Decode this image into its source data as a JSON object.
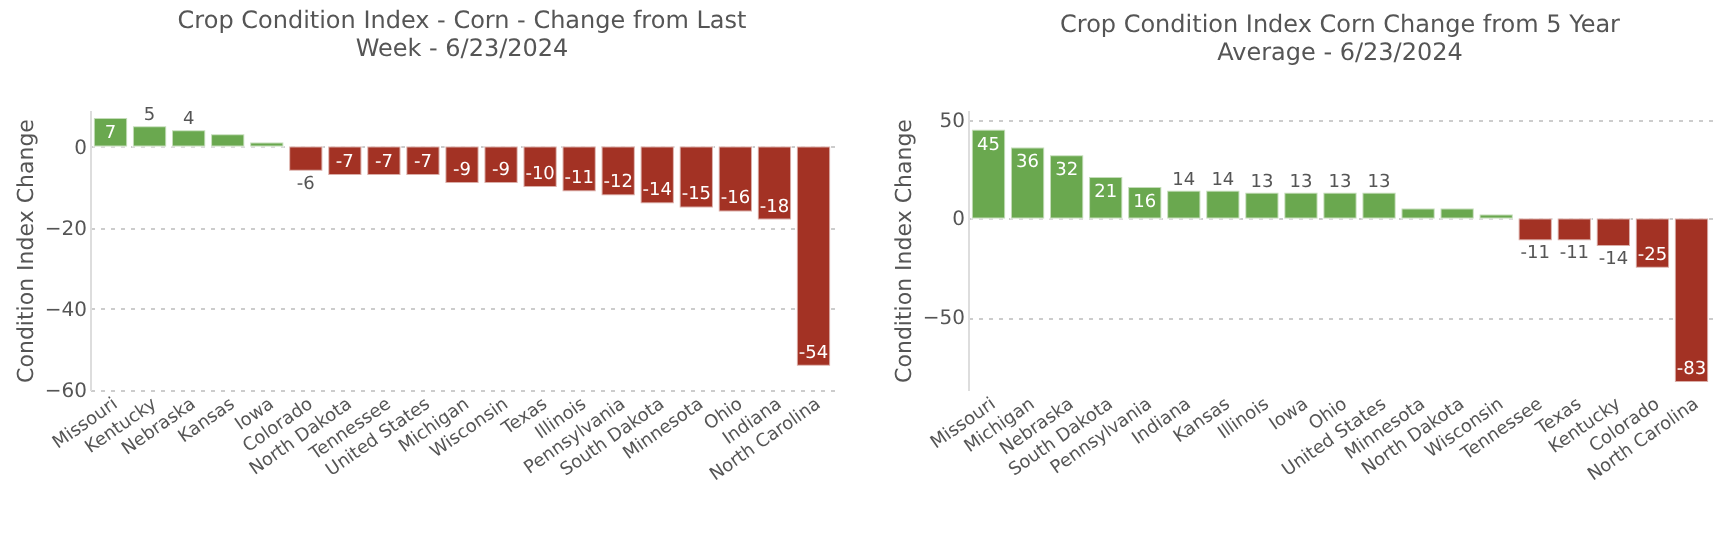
{
  "chart_data": [
    {
      "type": "bar",
      "title": "Crop Condition Index - Corn - Change from Last Week - 6/23/2024",
      "ylabel": "Condition Index Change",
      "categories": [
        "Missouri",
        "Kentucky",
        "Nebraska",
        "Kansas",
        "Iowa",
        "Colorado",
        "North Dakota",
        "Tennessee",
        "United States",
        "Michigan",
        "Wisconsin",
        "Texas",
        "Illinois",
        "Pennsylvania",
        "South Dakota",
        "Minnesota",
        "Ohio",
        "Indiana",
        "North Carolina"
      ],
      "values": [
        7,
        5,
        4,
        3,
        1,
        -6,
        -7,
        -7,
        -7,
        -9,
        -9,
        -10,
        -11,
        -12,
        -14,
        -15,
        -16,
        -18,
        -54
      ],
      "value_labels": [
        "7",
        "5",
        "4",
        null,
        null,
        "-6",
        "-7",
        "-7",
        "-7",
        "-9",
        "-9",
        "-10",
        "-11",
        "-12",
        "-14",
        "-15",
        "-16",
        "-18",
        "-54"
      ],
      "colors": [
        "#6aa84f",
        "#6aa84f",
        "#6aa84f",
        "#6aa84f",
        "#6aa84f",
        "#a33224",
        "#a33224",
        "#a33224",
        "#a33224",
        "#a33224",
        "#a33224",
        "#a33224",
        "#a33224",
        "#a33224",
        "#a33224",
        "#a33224",
        "#a33224",
        "#a33224",
        "#a33224"
      ],
      "ylim": [
        -60,
        9
      ],
      "yticks": [
        0,
        -20,
        -40,
        -60
      ],
      "grid": "y"
    },
    {
      "type": "bar",
      "title": "Crop Condition Index Corn Change from 5 Year Average - 6/23/2024",
      "ylabel": "Condition Index Change",
      "categories": [
        "Missouri",
        "Michigan",
        "Nebraska",
        "South Dakota",
        "Pennsylvania",
        "Indiana",
        "Kansas",
        "Illinois",
        "Iowa",
        "Ohio",
        "United States",
        "Minnesota",
        "North Dakota",
        "Wisconsin",
        "Tennessee",
        "Texas",
        "Kentucky",
        "Colorado",
        "North Carolina"
      ],
      "values": [
        45,
        36,
        32,
        21,
        16,
        14,
        14,
        13,
        13,
        13,
        13,
        5,
        5,
        2,
        -11,
        -11,
        -14,
        -25,
        -83
      ],
      "value_labels": [
        "45",
        "36",
        "32",
        "21",
        "16",
        "14",
        "14",
        "13",
        "13",
        "13",
        "13",
        null,
        null,
        null,
        "-11",
        "-11",
        "-14",
        "-25",
        "-83"
      ],
      "colors": [
        "#6aa84f",
        "#6aa84f",
        "#6aa84f",
        "#6aa84f",
        "#6aa84f",
        "#6aa84f",
        "#6aa84f",
        "#6aa84f",
        "#6aa84f",
        "#6aa84f",
        "#6aa84f",
        "#6aa84f",
        "#6aa84f",
        "#6aa84f",
        "#a33224",
        "#a33224",
        "#a33224",
        "#a33224",
        "#a33224"
      ],
      "ylim": [
        -87,
        55
      ],
      "yticks": [
        50,
        0,
        -50
      ],
      "grid": "y"
    }
  ]
}
